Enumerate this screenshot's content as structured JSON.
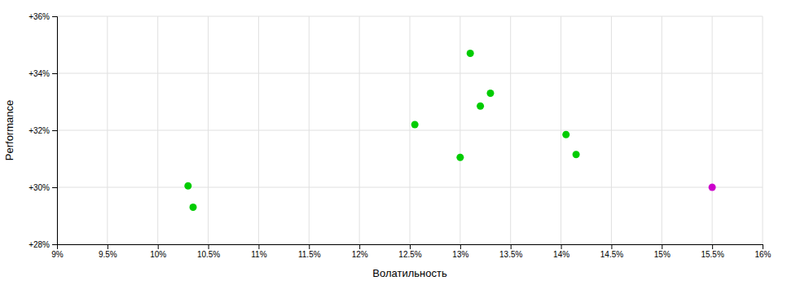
{
  "chart_data": {
    "type": "scatter",
    "x": [
      13.1,
      13.3,
      13.2,
      12.55,
      14.05,
      13.0,
      14.15,
      10.3,
      10.35,
      15.5
    ],
    "values": [
      34.7,
      33.3,
      32.85,
      32.2,
      31.85,
      31.05,
      31.15,
      30.05,
      29.3,
      30.0
    ],
    "colors": [
      "#00cc00",
      "#00cc00",
      "#00cc00",
      "#00cc00",
      "#00cc00",
      "#00cc00",
      "#00cc00",
      "#00cc00",
      "#00cc00",
      "#cc00cc"
    ],
    "xlabel": "Волатильность",
    "ylabel": "Performance",
    "xlim": [
      9.0,
      16.0
    ],
    "ylim": [
      28.0,
      36.0
    ],
    "xticks": [
      {
        "value": 9.0,
        "label": "9%"
      },
      {
        "value": 9.5,
        "label": "9.5%"
      },
      {
        "value": 10.0,
        "label": "10%"
      },
      {
        "value": 10.5,
        "label": "10.5%"
      },
      {
        "value": 11.0,
        "label": "11%"
      },
      {
        "value": 11.5,
        "label": "11.5%"
      },
      {
        "value": 12.0,
        "label": "12%"
      },
      {
        "value": 12.5,
        "label": "12.5%"
      },
      {
        "value": 13.0,
        "label": "13%"
      },
      {
        "value": 13.5,
        "label": "13.5%"
      },
      {
        "value": 14.0,
        "label": "14%"
      },
      {
        "value": 14.5,
        "label": "14.5%"
      },
      {
        "value": 15.0,
        "label": "15%"
      },
      {
        "value": 15.5,
        "label": "15.5%"
      },
      {
        "value": 16.0,
        "label": "16%"
      }
    ],
    "yticks": [
      {
        "value": 28.0,
        "label": "+28%"
      },
      {
        "value": 30.0,
        "label": "+30%"
      },
      {
        "value": 32.0,
        "label": "+32%"
      },
      {
        "value": 34.0,
        "label": "+34%"
      },
      {
        "value": 36.0,
        "label": "+36%"
      }
    ],
    "grid": true
  }
}
